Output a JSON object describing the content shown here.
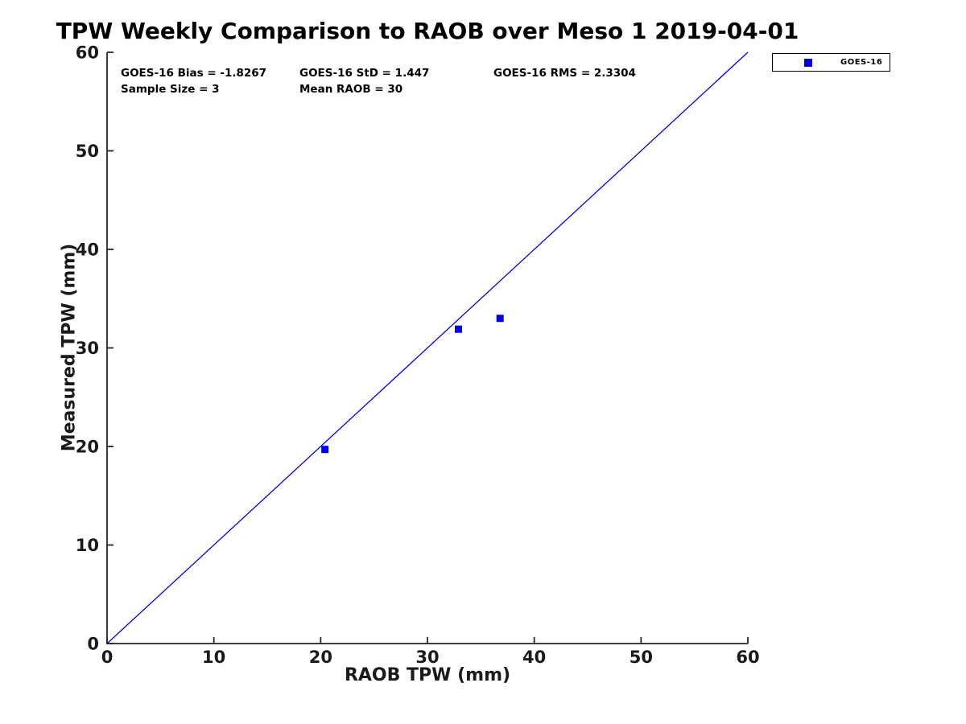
{
  "chart_data": {
    "type": "scatter",
    "title": "TPW Weekly Comparison to RAOB over Meso 1 2019-04-01",
    "xlabel": "RAOB TPW (mm)",
    "ylabel": "Measured TPW (mm)",
    "xlim": [
      0,
      60
    ],
    "ylim": [
      0,
      60
    ],
    "xticks": [
      "0",
      "10",
      "20",
      "30",
      "40",
      "50",
      "60"
    ],
    "yticks": [
      "0",
      "10",
      "20",
      "30",
      "40",
      "50",
      "60"
    ],
    "grid": false,
    "axis_color": "#262626",
    "identity_line": {
      "x": [
        0,
        60
      ],
      "y": [
        0,
        60
      ],
      "color": "#0000ee",
      "width": 1.3
    },
    "series": [
      {
        "name": "GOES-16",
        "marker": "filled-square",
        "color": "#0000f0",
        "marker_size": 9,
        "points": [
          [
            20.4,
            19.7
          ],
          [
            32.9,
            31.9
          ],
          [
            36.8,
            33.0
          ]
        ]
      }
    ],
    "legend": {
      "position": "outside-top-right",
      "entries": [
        {
          "label": "GOES-16",
          "marker": "filled-square",
          "color": "#0000f0"
        }
      ]
    },
    "annotations": {
      "bias": "GOES-16 Bias = -1.8267",
      "std": "GOES-16 StD = 1.447",
      "rms": "GOES-16 RMS = 2.3304",
      "sample_size": "Sample Size = 3",
      "mean_raob": "Mean RAOB = 30"
    }
  }
}
